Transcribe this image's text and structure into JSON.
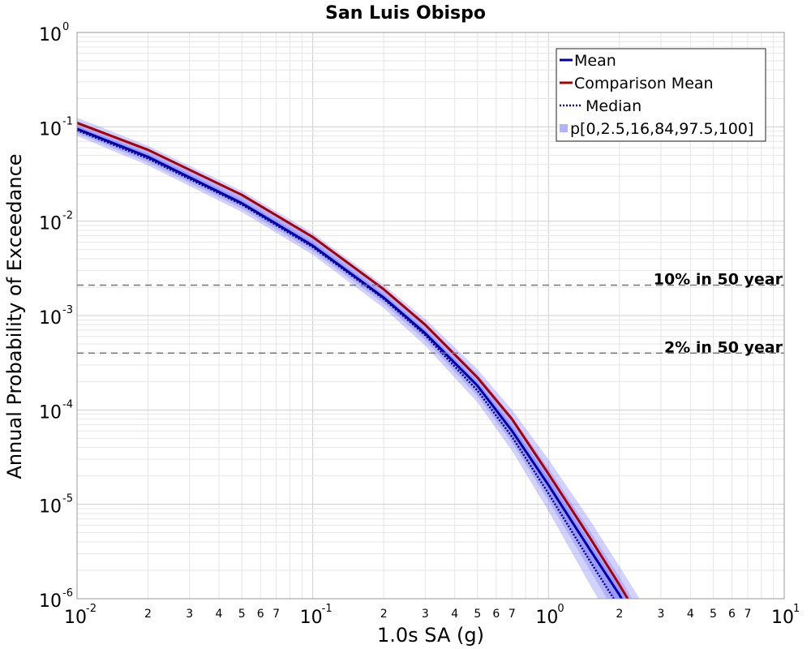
{
  "chart_data": {
    "type": "line",
    "title": "San Luis Obispo",
    "xlabel": "1.0s SA (g)",
    "ylabel": "Annual Probability of Exceedance",
    "x_scale": "log",
    "y_scale": "log",
    "xlim": [
      0.01,
      10
    ],
    "ylim": [
      1e-06,
      1
    ],
    "grid": true,
    "legend_position": "top-right",
    "x_major_ticks": [
      {
        "base": "10",
        "exp": "-2"
      },
      {
        "base": "10",
        "exp": "-1"
      },
      {
        "base": "10",
        "exp": "0"
      },
      {
        "base": "10",
        "exp": "1"
      }
    ],
    "y_major_ticks": [
      {
        "base": "10",
        "exp": "0"
      },
      {
        "base": "10",
        "exp": "-1"
      },
      {
        "base": "10",
        "exp": "-2"
      },
      {
        "base": "10",
        "exp": "-3"
      },
      {
        "base": "10",
        "exp": "-4"
      },
      {
        "base": "10",
        "exp": "-5"
      },
      {
        "base": "10",
        "exp": "-6"
      }
    ],
    "x_minor_tick_labels": [
      "2",
      "3",
      "4",
      "5",
      "6",
      "7"
    ],
    "reference_lines": [
      {
        "label": "10% in 50 year",
        "y": 0.0021
      },
      {
        "label": "2% in 50 year",
        "y": 0.0004
      }
    ],
    "x": [
      0.01,
      0.02,
      0.05,
      0.1,
      0.2,
      0.3,
      0.5,
      0.7,
      1.0,
      1.5,
      2.0,
      2.5
    ],
    "series": [
      {
        "name": "Mean",
        "color": "#0000aa",
        "style": "solid",
        "values": [
          0.095,
          0.048,
          0.0155,
          0.0055,
          0.00155,
          0.00065,
          0.00018,
          6e-05,
          1.6e-05,
          3.3e-06,
          1.1e-06,
          4e-07
        ]
      },
      {
        "name": "Comparison Mean",
        "color": "#aa0000",
        "style": "solid",
        "values": [
          0.11,
          0.057,
          0.019,
          0.0068,
          0.0019,
          0.0008,
          0.00022,
          8e-05,
          2.1e-05,
          4.4e-06,
          1.4e-06,
          5.5e-07
        ]
      },
      {
        "name": "Median",
        "color": "#000088",
        "style": "dotted",
        "values": [
          0.092,
          0.046,
          0.015,
          0.0053,
          0.0015,
          0.00062,
          0.00016,
          5.2e-05,
          1.3e-05,
          2.5e-06,
          8e-07,
          3e-07
        ]
      }
    ],
    "bands": {
      "name": "p[0,2.5,16,84,97.5,100]",
      "color": "#6b6bff",
      "outer_low": [
        0.08,
        0.039,
        0.0125,
        0.0044,
        0.0012,
        0.00048,
        0.00012,
        3.7e-05,
        8.5e-06,
        1.4e-06,
        4e-07,
        1.4e-07
      ],
      "outer_high": [
        0.125,
        0.063,
        0.021,
        0.0075,
        0.0021,
        0.00092,
        0.00027,
        0.0001,
        3e-05,
        6.8e-06,
        2.2e-06,
        9e-07
      ],
      "mid_low": [
        0.086,
        0.042,
        0.0136,
        0.0048,
        0.00134,
        0.00055,
        0.00014,
        4.5e-05,
        1.1e-05,
        2e-06,
        6e-07,
        2.2e-07
      ],
      "mid_high": [
        0.115,
        0.058,
        0.0193,
        0.0069,
        0.0019,
        0.00083,
        0.00024,
        8.5e-05,
        2.4e-05,
        5.2e-06,
        1.7e-06,
        6.5e-07
      ],
      "inner_low": [
        0.09,
        0.045,
        0.0146,
        0.0052,
        0.00145,
        0.0006,
        0.00016,
        5e-05,
        1.3e-05,
        2.5e-06,
        8e-07,
        2.8e-07
      ],
      "inner_high": [
        0.102,
        0.052,
        0.0168,
        0.006,
        0.00168,
        0.00071,
        0.0002,
        6.8e-05,
        1.9e-05,
        3.9e-06,
        1.3e-06,
        4.8e-07
      ]
    },
    "legend": [
      {
        "label": "Mean",
        "kind": "line",
        "color": "#0000aa"
      },
      {
        "label": "Comparison Mean",
        "kind": "line",
        "color": "#aa0000"
      },
      {
        "label": "Median",
        "kind": "dotted",
        "color": "#000088"
      },
      {
        "label": "p[0,2.5,16,84,97.5,100]",
        "kind": "square",
        "color": "#b3b3ff"
      }
    ]
  }
}
